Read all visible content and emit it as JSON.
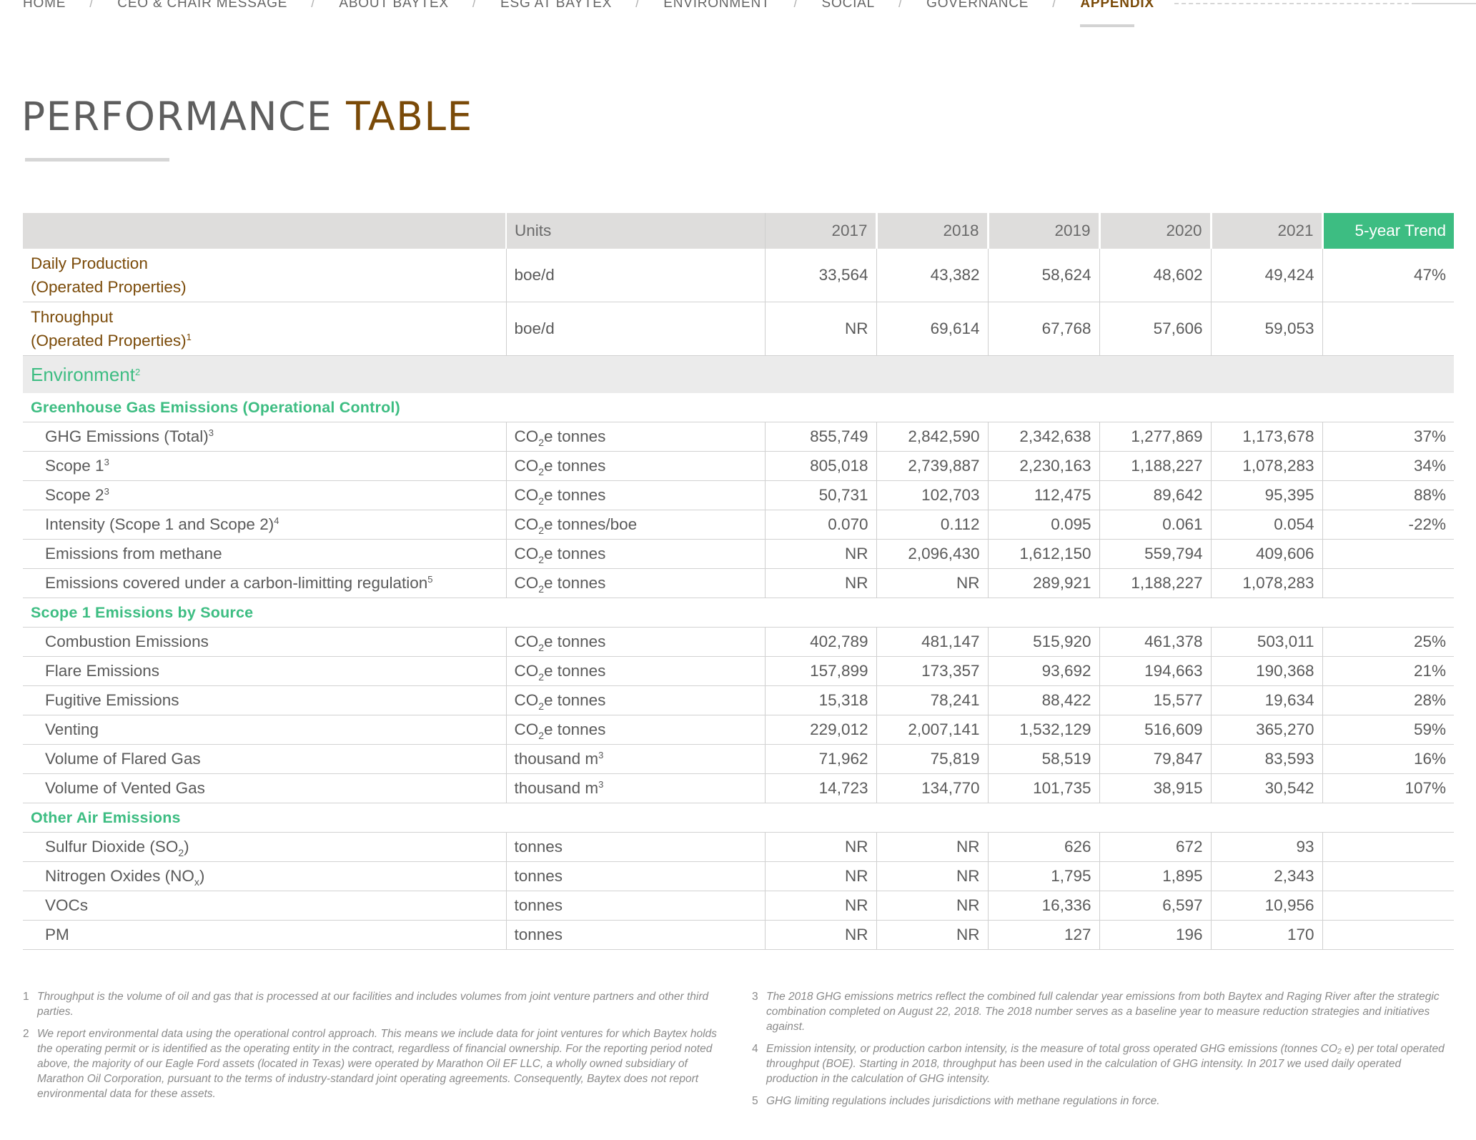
{
  "nav": {
    "items": [
      "HOME",
      "CEO & CHAIR MESSAGE",
      "ABOUT BAYTEX",
      "ESG AT BAYTEX",
      "ENVIRONMENT",
      "SOCIAL",
      "GOVERNANCE",
      "APPENDIX"
    ],
    "separator": "/",
    "active": "APPENDIX"
  },
  "title": {
    "part1": "PERFORMANCE",
    "part2": "TABLE"
  },
  "table": {
    "header": {
      "units": "Units",
      "years": [
        "2017",
        "2018",
        "2019",
        "2020",
        "2021"
      ],
      "trend": "5-year Trend"
    },
    "production": [
      {
        "label_main": "Daily Production",
        "label_sub": "(Operated Properties)",
        "sup": "",
        "unit": "boe/d",
        "values": [
          "33,564",
          "43,382",
          "58,624",
          "48,602",
          "49,424"
        ],
        "trend": "47%"
      },
      {
        "label_main": "Throughput",
        "label_sub": "(Operated Properties)",
        "sup": "1",
        "unit": "boe/d",
        "values": [
          "NR",
          "69,614",
          "67,768",
          "57,606",
          "59,053"
        ],
        "trend": ""
      }
    ],
    "environment": {
      "label": "Environment",
      "sup": "2"
    },
    "ghg": {
      "heading": "Greenhouse Gas Emissions (Operational Control)",
      "rows": [
        {
          "label": "GHG Emissions (Total)",
          "sup": "3",
          "unit_pre": "CO",
          "unit_sub": "2",
          "unit_post": "e tonnes",
          "values": [
            "855,749",
            "2,842,590",
            "2,342,638",
            "1,277,869",
            "1,173,678"
          ],
          "trend": "37%"
        },
        {
          "label": "Scope 1",
          "sup": "3",
          "unit_pre": "CO",
          "unit_sub": "2",
          "unit_post": "e tonnes",
          "values": [
            "805,018",
            "2,739,887",
            "2,230,163",
            "1,188,227",
            "1,078,283"
          ],
          "trend": "34%"
        },
        {
          "label": "Scope 2",
          "sup": "3",
          "unit_pre": "CO",
          "unit_sub": "2",
          "unit_post": "e tonnes",
          "values": [
            "50,731",
            "102,703",
            "112,475",
            "89,642",
            "95,395"
          ],
          "trend": "88%"
        },
        {
          "label": "Intensity (Scope 1 and Scope 2)",
          "sup": "4",
          "unit_pre": "CO",
          "unit_sub": "2",
          "unit_post": "e tonnes/boe",
          "values": [
            "0.070",
            "0.112",
            "0.095",
            "0.061",
            "0.054"
          ],
          "trend": "-22%"
        },
        {
          "label": "Emissions from methane",
          "sup": "",
          "unit_pre": "CO",
          "unit_sub": "2",
          "unit_post": "e tonnes",
          "values": [
            "NR",
            "2,096,430",
            "1,612,150",
            "559,794",
            "409,606"
          ],
          "trend": ""
        },
        {
          "label": "Emissions covered under a carbon-limitting regulation",
          "sup": "5",
          "unit_pre": "CO",
          "unit_sub": "2",
          "unit_post": "e tonnes",
          "values": [
            "NR",
            "NR",
            "289,921",
            "1,188,227",
            "1,078,283"
          ],
          "trend": ""
        }
      ]
    },
    "scope1": {
      "heading": "Scope 1 Emissions by Source",
      "rows": [
        {
          "label": "Combustion Emissions",
          "sup": "",
          "unit_pre": "CO",
          "unit_sub": "2",
          "unit_post": "e tonnes",
          "values": [
            "402,789",
            "481,147",
            "515,920",
            "461,378",
            "503,011"
          ],
          "trend": "25%"
        },
        {
          "label": "Flare Emissions",
          "sup": "",
          "unit_pre": "CO",
          "unit_sub": "2",
          "unit_post": "e tonnes",
          "values": [
            "157,899",
            "173,357",
            "93,692",
            "194,663",
            "190,368"
          ],
          "trend": "21%"
        },
        {
          "label": "Fugitive Emissions",
          "sup": "",
          "unit_pre": "CO",
          "unit_sub": "2",
          "unit_post": "e tonnes",
          "values": [
            "15,318",
            "78,241",
            "88,422",
            "15,577",
            "19,634"
          ],
          "trend": "28%"
        },
        {
          "label": "Venting",
          "sup": "",
          "unit_pre": "CO",
          "unit_sub": "2",
          "unit_post": "e tonnes",
          "values": [
            "229,012",
            "2,007,141",
            "1,532,129",
            "516,609",
            "365,270"
          ],
          "trend": "59%"
        },
        {
          "label": "Volume of Flared Gas",
          "sup": "",
          "unit_pre": "thousand m",
          "unit_sup": "3",
          "unit_post": "",
          "values": [
            "71,962",
            "75,819",
            "58,519",
            "79,847",
            "83,593"
          ],
          "trend": "16%"
        },
        {
          "label": "Volume of Vented Gas",
          "sup": "",
          "unit_pre": "thousand m",
          "unit_sup": "3",
          "unit_post": "",
          "values": [
            "14,723",
            "134,770",
            "101,735",
            "38,915",
            "30,542"
          ],
          "trend": "107%"
        }
      ]
    },
    "air": {
      "heading": "Other Air Emissions",
      "rows": [
        {
          "label_pre": "Sulfur Dioxide (SO",
          "label_sub": "2",
          "label_post": ")",
          "unit": "tonnes",
          "values": [
            "NR",
            "NR",
            "626",
            "672",
            "93"
          ],
          "trend": ""
        },
        {
          "label_pre": "Nitrogen Oxides (NO",
          "label_sub": "x",
          "label_post": ")",
          "unit": "tonnes",
          "values": [
            "NR",
            "NR",
            "1,795",
            "1,895",
            "2,343"
          ],
          "trend": ""
        },
        {
          "label_pre": "VOCs",
          "label_sub": "",
          "label_post": "",
          "unit": "tonnes",
          "values": [
            "NR",
            "NR",
            "16,336",
            "6,597",
            "10,956"
          ],
          "trend": ""
        },
        {
          "label_pre": "PM",
          "label_sub": "",
          "label_post": "",
          "unit": "tonnes",
          "values": [
            "NR",
            "NR",
            "127",
            "196",
            "170"
          ],
          "trend": ""
        }
      ]
    }
  },
  "footnotes": {
    "left": [
      {
        "num": "1",
        "text": "Throughput is the volume of oil and gas that is processed at our facilities and includes volumes from joint venture partners and other third parties."
      },
      {
        "num": "2",
        "text": "We report environmental data using the operational control approach. This means we include data for joint ventures for which Baytex holds the operating permit or is identified as the operating entity in the contract, regardless of financial ownership. For the reporting period noted above, the majority of our Eagle Ford assets (located in Texas) were operated by Marathon Oil EF LLC, a wholly owned subsidiary of Marathon Oil Corporation, pursuant to the terms of industry-standard joint operating agreements. Consequently, Baytex does not report environmental data for these assets."
      }
    ],
    "right": [
      {
        "num": "3",
        "text": "The 2018 GHG emissions metrics reflect the combined full calendar year emissions from both Baytex and Raging River after the strategic combination completed on August 22, 2018. The 2018 number serves as a baseline year to measure reduction strategies and initiatives against."
      },
      {
        "num": "4",
        "text": "Emission intensity, or production carbon intensity, is the measure of total gross operated GHG emissions (tonnes CO₂ e) per total operated throughput (BOE). Starting in 2018, throughput has been used in the calculation of GHG intensity. In 2017 we used daily operated production in the calculation of GHG intensity."
      },
      {
        "num": "5",
        "text": "GHG limiting regulations includes jurisdictions with methane regulations in force."
      }
    ]
  }
}
